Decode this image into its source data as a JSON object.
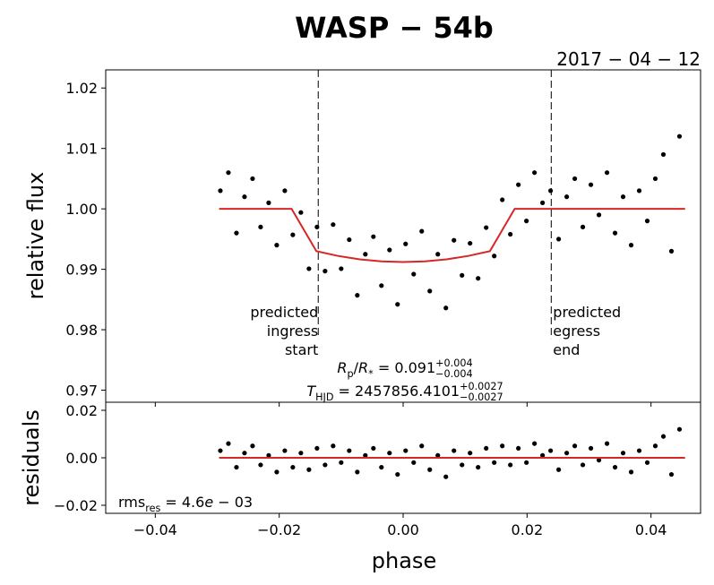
{
  "chart_data": [
    {
      "type": "scatter",
      "title": "WASP − 54b",
      "subtitle": "2017 − 04 − 12",
      "y_label": "relative flux",
      "xlim": [
        -0.048,
        0.048
      ],
      "ylim": [
        0.968,
        1.023
      ],
      "yticks": [
        0.97,
        0.98,
        0.99,
        {
          "value": 1.0,
          "label": "1.00"
        },
        1.01,
        1.02
      ],
      "series": [
        {
          "color": "#000000",
          "kind": "points",
          "x": [
            -0.0295,
            -0.0282,
            -0.0269,
            -0.0256,
            -0.0243,
            -0.023,
            -0.0217,
            -0.0204,
            -0.0191,
            -0.0178,
            -0.0165,
            -0.0152,
            -0.0139,
            -0.0126,
            -0.0113,
            -0.01,
            -0.0087,
            -0.0074,
            -0.0061,
            -0.0048,
            -0.0035,
            -0.0022,
            -0.0009,
            0.0004,
            0.0017,
            0.003,
            0.0043,
            0.0056,
            0.0069,
            0.0082,
            0.0095,
            0.0108,
            0.0121,
            0.0134,
            0.0147,
            0.016,
            0.0173,
            0.0186,
            0.0199,
            0.0212,
            0.0225,
            0.0238,
            0.0251,
            0.0264,
            0.0277,
            0.029,
            0.0303,
            0.0316,
            0.0329,
            0.0342,
            0.0355,
            0.0368,
            0.0381,
            0.0394,
            0.0407,
            0.042,
            0.0433,
            0.0446
          ],
          "values": [
            1.003,
            1.006,
            0.996,
            1.002,
            1.005,
            0.997,
            1.001,
            0.994,
            1.003,
            0.9957,
            0.9994,
            0.9901,
            0.997,
            0.9897,
            0.9974,
            0.9901,
            0.9949,
            0.9857,
            0.9925,
            0.9954,
            0.9873,
            0.9932,
            0.9842,
            0.9942,
            0.9892,
            0.9963,
            0.9864,
            0.9925,
            0.9836,
            0.9948,
            0.989,
            0.9943,
            0.9885,
            0.9969,
            0.9922,
            1.0015,
            0.9958,
            1.004,
            0.998,
            1.006,
            1.001,
            1.003,
            0.995,
            1.002,
            1.005,
            0.997,
            1.004,
            0.999,
            1.006,
            0.996,
            1.002,
            0.994,
            1.003,
            0.998,
            1.005,
            1.009,
            0.993,
            1.012
          ]
        },
        {
          "color": "#d62728",
          "kind": "line",
          "x": [
            -0.0297,
            -0.018,
            -0.014,
            -0.0105,
            -0.007,
            -0.0035,
            0,
            0.0035,
            0.007,
            0.0105,
            0.014,
            0.018,
            0.0455
          ],
          "values": [
            1.0,
            1.0,
            0.993,
            0.99221,
            0.99165,
            0.99131,
            0.9912,
            0.99131,
            0.99165,
            0.99221,
            0.993,
            1.0,
            1.0
          ]
        }
      ],
      "vlines": [
        -0.0137,
        0.0239
      ],
      "ingress_label": [
        "predicted",
        "ingress",
        "start"
      ],
      "egress_label": [
        "predicted",
        "egress",
        "end"
      ],
      "rp_label": {
        "parts": [
          {
            "text": "R",
            "style": "italic"
          },
          {
            "text": "p",
            "style": "sub"
          },
          {
            "text": "/",
            "style": "normal"
          },
          {
            "text": "R",
            "style": "italic"
          },
          {
            "text": "*",
            "style": "sub"
          },
          {
            "text": " = 0.091",
            "style": "normal"
          },
          {
            "text": "+0.004",
            "style": "sup"
          },
          {
            "text": "−0.004",
            "style": "sub"
          }
        ]
      },
      "t_label": {
        "parts": [
          {
            "text": "T",
            "style": "italic"
          },
          {
            "text": "HJD",
            "style": "sub"
          },
          {
            "text": " = 2457856.4101",
            "style": "normal"
          },
          {
            "text": "+0.0027",
            "style": "sup"
          },
          {
            "text": "−0.0027",
            "style": "sub"
          }
        ]
      }
    },
    {
      "type": "scatter",
      "x_label": "phase",
      "y_label": "residuals",
      "xlim": [
        -0.048,
        0.048
      ],
      "ylim": [
        -0.0234,
        0.0234
      ],
      "xticks": [
        {
          "value": -0.04,
          "label": "−0.04"
        },
        {
          "value": -0.02,
          "label": "−0.02"
        },
        {
          "value": 0,
          "label": "0.00"
        },
        0.02,
        0.04
      ],
      "yticks": [
        {
          "value": -0.02,
          "label": "−0.02"
        },
        {
          "value": 0,
          "label": "0.00"
        },
        0.02
      ],
      "series": [
        {
          "color": "#000000",
          "kind": "points",
          "x": [
            -0.0295,
            -0.0282,
            -0.0269,
            -0.0256,
            -0.0243,
            -0.023,
            -0.0217,
            -0.0204,
            -0.0191,
            -0.0178,
            -0.0165,
            -0.0152,
            -0.0139,
            -0.0126,
            -0.0113,
            -0.01,
            -0.0087,
            -0.0074,
            -0.0061,
            -0.0048,
            -0.0035,
            -0.0022,
            -0.0009,
            0.0004,
            0.0017,
            0.003,
            0.0043,
            0.0056,
            0.0069,
            0.0082,
            0.0095,
            0.0108,
            0.0121,
            0.0134,
            0.0147,
            0.016,
            0.0173,
            0.0186,
            0.0199,
            0.0212,
            0.0225,
            0.0238,
            0.0251,
            0.0264,
            0.0277,
            0.029,
            0.0303,
            0.0316,
            0.0329,
            0.0342,
            0.0355,
            0.0368,
            0.0381,
            0.0394,
            0.0407,
            0.042,
            0.0433,
            0.0446
          ],
          "values": [
            0.003,
            0.006,
            -0.004,
            0.002,
            0.005,
            -0.003,
            0.001,
            -0.006,
            0.003,
            -0.004,
            0.002,
            -0.005,
            0.004,
            -0.003,
            0.005,
            -0.002,
            0.003,
            -0.006,
            0.001,
            0.004,
            -0.004,
            0.002,
            -0.007,
            0.003,
            -0.002,
            0.005,
            -0.005,
            0.001,
            -0.008,
            0.003,
            -0.003,
            0.002,
            -0.004,
            0.004,
            -0.002,
            0.005,
            -0.003,
            0.004,
            -0.002,
            0.006,
            0.001,
            0.003,
            -0.005,
            0.002,
            0.005,
            -0.003,
            0.004,
            -0.001,
            0.006,
            -0.004,
            0.002,
            -0.006,
            0.003,
            -0.002,
            0.005,
            0.009,
            -0.007,
            0.012
          ]
        },
        {
          "color": "#d62728",
          "kind": "line",
          "x": [
            -0.0297,
            0.0455
          ],
          "values": [
            0,
            0
          ]
        }
      ],
      "rms_label": {
        "parts": [
          {
            "text": "rms",
            "style": "normal"
          },
          {
            "text": "res",
            "style": "sub"
          },
          {
            "text": " = 4.6",
            "style": "normal"
          },
          {
            "text": "e",
            "style": "italic"
          },
          {
            "text": " − 03",
            "style": "normal"
          }
        ]
      }
    }
  ]
}
